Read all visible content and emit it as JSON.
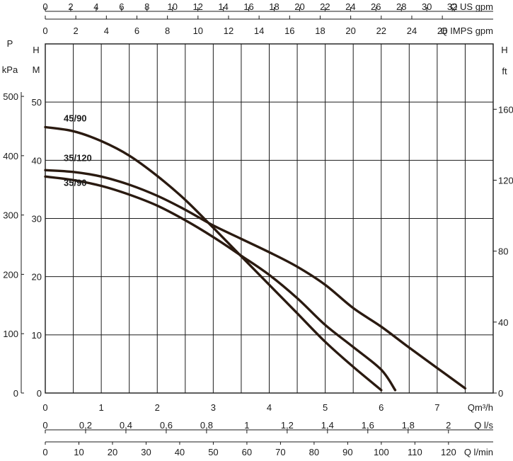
{
  "chart_data": {
    "type": "line",
    "x_axes": [
      {
        "id": "qm3h",
        "unit_label": "Qm³/h",
        "range": [
          0,
          8.0
        ],
        "ticks": [
          0,
          1,
          2,
          3,
          4,
          5,
          6,
          7
        ],
        "tick_labels": [
          "0",
          "1",
          "2",
          "3",
          "4",
          "5",
          "6",
          "7"
        ]
      },
      {
        "id": "ls",
        "unit_label": "Q l/s",
        "range": [
          0,
          2.222
        ],
        "ticks": [
          0,
          0.2,
          0.4,
          0.6,
          0.8,
          1,
          1.2,
          1.4,
          1.6,
          1.8,
          2
        ],
        "tick_labels": [
          "0",
          "0,2",
          "0,4",
          "0,6",
          "0,8",
          "1",
          "1,2",
          "1,4",
          "1,6",
          "1,8",
          "2"
        ]
      },
      {
        "id": "lmin",
        "unit_label": "Q l/min",
        "range": [
          0,
          133.3
        ],
        "ticks": [
          0,
          10,
          20,
          30,
          40,
          50,
          60,
          70,
          80,
          90,
          100,
          110,
          120
        ],
        "tick_labels": [
          "0",
          "10",
          "20",
          "30",
          "40",
          "50",
          "60",
          "70",
          "80",
          "90",
          "100",
          "110",
          "120"
        ]
      },
      {
        "id": "usgpm",
        "unit_label": "Q US gpm",
        "range": [
          0,
          35.22
        ],
        "ticks": [
          0,
          2,
          4,
          6,
          8,
          10,
          12,
          14,
          16,
          18,
          20,
          22,
          24,
          26,
          28,
          30,
          32
        ],
        "tick_labels": [
          "0",
          "2",
          "4",
          "6",
          "8",
          "10",
          "12",
          "14",
          "16",
          "18",
          "20",
          "22",
          "24",
          "26",
          "28",
          "30",
          "32"
        ]
      },
      {
        "id": "impgpm",
        "unit_label": "Q IMPS gpm",
        "range": [
          0,
          29.33
        ],
        "ticks": [
          0,
          2,
          4,
          6,
          8,
          10,
          12,
          14,
          16,
          18,
          20,
          22,
          24,
          26
        ],
        "tick_labels": [
          "0",
          "2",
          "4",
          "6",
          "8",
          "10",
          "12",
          "14",
          "16",
          "18",
          "20",
          "22",
          "24",
          "26"
        ]
      }
    ],
    "y_axes": [
      {
        "id": "m",
        "unit_label": [
          "H",
          "M"
        ],
        "range": [
          0,
          60
        ],
        "ticks": [
          0,
          10,
          20,
          30,
          40,
          50
        ],
        "tick_labels": [
          "0",
          "10",
          "20",
          "30",
          "40",
          "50"
        ]
      },
      {
        "id": "kpa",
        "unit_label": [
          "P",
          "kPa"
        ],
        "range": [
          0,
          588.4
        ],
        "ticks": [
          0,
          100,
          200,
          300,
          400,
          500
        ],
        "tick_labels": [
          "0",
          "100",
          "200",
          "300",
          "400",
          "500"
        ]
      },
      {
        "id": "ft",
        "unit_label": [
          "H",
          "ft"
        ],
        "range": [
          0,
          196.85
        ],
        "ticks": [
          0,
          40,
          80,
          120,
          160
        ],
        "tick_labels": [
          "0",
          "40",
          "80",
          "120",
          "160"
        ]
      }
    ],
    "series": [
      {
        "name": "45/90",
        "x_unit": "m³/h",
        "y_unit": "m",
        "points": [
          [
            0,
            45.7
          ],
          [
            0.5,
            45
          ],
          [
            1,
            43.3
          ],
          [
            1.5,
            40.8
          ],
          [
            2,
            37.3
          ],
          [
            2.5,
            33.2
          ],
          [
            3,
            28.4
          ],
          [
            3.5,
            23.5
          ],
          [
            4,
            18.6
          ],
          [
            4.5,
            13.7
          ],
          [
            5,
            8.8
          ],
          [
            5.5,
            4.5
          ],
          [
            6,
            0.5
          ]
        ]
      },
      {
        "name": "35/120",
        "x_unit": "m³/h",
        "y_unit": "m",
        "points": [
          [
            0,
            38.3
          ],
          [
            0.5,
            38
          ],
          [
            1,
            37.2
          ],
          [
            1.5,
            35.8
          ],
          [
            2,
            33.9
          ],
          [
            2.5,
            31.5
          ],
          [
            3,
            28.8
          ],
          [
            3.5,
            26.5
          ],
          [
            4,
            24.2
          ],
          [
            4.5,
            21.7
          ],
          [
            5,
            18.6
          ],
          [
            5.5,
            14.6
          ],
          [
            6,
            11.4
          ],
          [
            6.5,
            7.8
          ],
          [
            7,
            4.3
          ],
          [
            7.5,
            0.8
          ]
        ]
      },
      {
        "name": "35/90",
        "x_unit": "m³/h",
        "y_unit": "m",
        "points": [
          [
            0,
            37.2
          ],
          [
            0.5,
            36.6
          ],
          [
            1,
            35.6
          ],
          [
            1.5,
            34.1
          ],
          [
            2,
            32.2
          ],
          [
            2.5,
            29.7
          ],
          [
            3,
            26.8
          ],
          [
            3.5,
            23.6
          ],
          [
            4,
            20.3
          ],
          [
            4.5,
            16.3
          ],
          [
            5,
            11.7
          ],
          [
            5.5,
            7.9
          ],
          [
            6,
            4
          ],
          [
            6.25,
            0.5
          ]
        ]
      }
    ],
    "grid": true,
    "legend": "inline labels near curves"
  }
}
